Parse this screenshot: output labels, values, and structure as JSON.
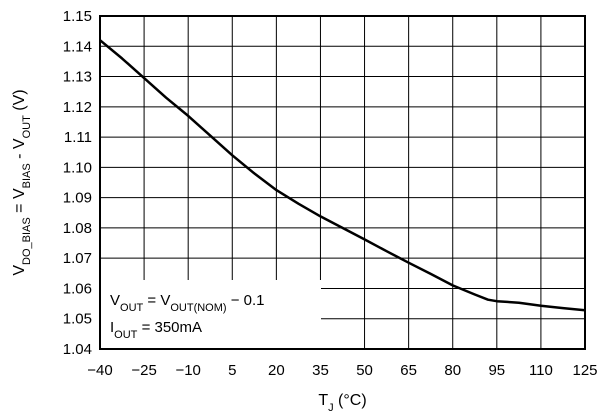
{
  "chart_data": {
    "type": "line",
    "xlabel": {
      "main": "T",
      "sub": "J",
      "rest": " (°C)"
    },
    "ylabel": {
      "parts": [
        {
          "t": "V"
        },
        {
          "t": "DO_BIAS",
          "sub": true
        },
        {
          "t": " = V"
        },
        {
          "t": "BIAS",
          "sub": true
        },
        {
          "t": " - V"
        },
        {
          "t": "OUT",
          "sub": true
        },
        {
          "t": " (V)"
        }
      ]
    },
    "x_ticks": [
      "−40",
      "−25",
      "−10",
      "5",
      "20",
      "35",
      "50",
      "65",
      "80",
      "95",
      "110",
      "125"
    ],
    "y_ticks": [
      "1.04",
      "1.05",
      "1.06",
      "1.07",
      "1.08",
      "1.09",
      "1.10",
      "1.11",
      "1.12",
      "1.13",
      "1.14",
      "1.15"
    ],
    "xlim": [
      -40,
      125
    ],
    "ylim": [
      1.04,
      1.15
    ],
    "grid": true,
    "series": [
      {
        "x": [
          -40,
          -32.5,
          -25,
          -17.5,
          -10,
          -2.5,
          5,
          12.5,
          20,
          27.5,
          35,
          42.5,
          50,
          57.5,
          65,
          72.5,
          80,
          87.5,
          92,
          95,
          102.5,
          110,
          117.5,
          125
        ],
        "y": [
          1.142,
          1.136,
          1.1295,
          1.123,
          1.117,
          1.1105,
          1.104,
          1.098,
          1.0925,
          1.088,
          1.0838,
          1.08,
          1.0762,
          1.0723,
          1.0685,
          1.0648,
          1.061,
          1.058,
          1.0563,
          1.0558,
          1.0553,
          1.0543,
          1.0535,
          1.0528
        ]
      }
    ],
    "annotation": {
      "line1": [
        {
          "t": "V"
        },
        {
          "t": "OUT",
          "sub": true
        },
        {
          "t": " = V"
        },
        {
          "t": "OUT(NOM)",
          "sub": true
        },
        {
          "t": " − 0.1"
        }
      ],
      "line2": [
        {
          "t": "I"
        },
        {
          "t": "OUT",
          "sub": true
        },
        {
          "t": " = 350mA"
        }
      ]
    }
  }
}
